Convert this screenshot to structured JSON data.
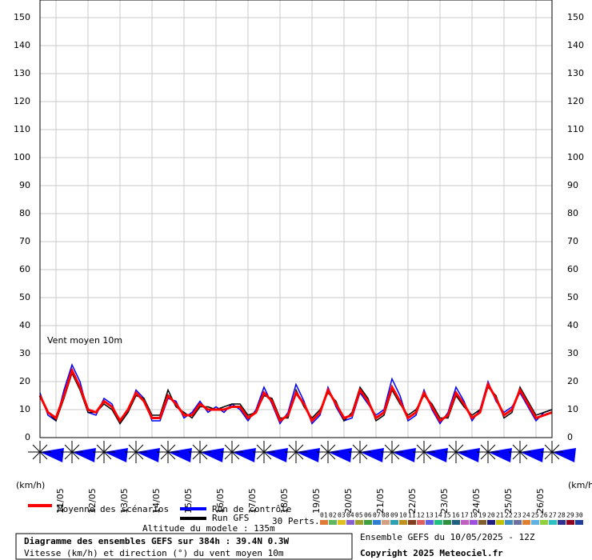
{
  "chart_data": {
    "type": "line",
    "annotation": "Vent moyen 10m",
    "y_unit_left": "(km/h)",
    "y_unit_right": "(km/h)",
    "x": [
      0,
      6,
      12,
      18,
      24,
      30,
      36,
      42,
      48,
      54,
      60,
      66,
      72,
      78,
      84,
      90,
      96,
      102,
      108,
      114,
      120,
      126,
      132,
      138,
      144,
      150,
      156,
      162,
      168,
      174,
      180,
      186,
      192,
      198,
      204,
      210,
      216,
      222,
      228,
      234,
      240,
      246,
      252,
      258,
      264,
      270,
      276,
      282,
      288,
      294,
      300,
      306,
      312,
      318,
      324,
      330,
      336,
      342,
      348,
      354,
      360,
      366,
      372,
      378,
      384
    ],
    "xlim": [
      0,
      384
    ],
    "xticks": [
      {
        "value": 12,
        "label": "11/05"
      },
      {
        "value": 36,
        "label": "12/05"
      },
      {
        "value": 60,
        "label": "13/05"
      },
      {
        "value": 84,
        "label": "14/05"
      },
      {
        "value": 108,
        "label": "15/05"
      },
      {
        "value": 132,
        "label": "16/05"
      },
      {
        "value": 156,
        "label": "17/05"
      },
      {
        "value": 180,
        "label": "18/05"
      },
      {
        "value": 204,
        "label": "19/05"
      },
      {
        "value": 228,
        "label": "20/05"
      },
      {
        "value": 252,
        "label": "21/05"
      },
      {
        "value": 276,
        "label": "22/05"
      },
      {
        "value": 300,
        "label": "23/05"
      },
      {
        "value": 324,
        "label": "24/05"
      },
      {
        "value": 348,
        "label": "25/05"
      },
      {
        "value": 372,
        "label": "26/05"
      }
    ],
    "ylim": [
      0,
      150
    ],
    "yticks": [
      0,
      10,
      20,
      30,
      40,
      50,
      60,
      70,
      80,
      90,
      100,
      110,
      120,
      130,
      140,
      150
    ],
    "grid": true,
    "series": [
      {
        "name": "Moyenne des scénarios",
        "color": "#ff0000",
        "values": [
          15,
          9,
          7,
          15,
          24,
          18,
          10,
          9,
          13,
          11,
          6,
          10,
          16,
          13,
          7,
          7,
          15,
          12,
          8,
          8,
          12,
          10,
          10,
          10,
          11,
          11,
          7,
          9,
          16,
          13,
          6,
          8,
          16,
          12,
          6,
          9,
          17,
          12,
          7,
          8,
          17,
          13,
          7,
          9,
          18,
          13,
          7,
          9,
          16,
          11,
          6,
          8,
          16,
          12,
          7,
          9,
          19,
          14,
          8,
          10,
          17,
          12,
          7,
          8,
          9
        ]
      },
      {
        "name": "Run de contrôle",
        "color": "#0000ff",
        "values": [
          16,
          8,
          6,
          17,
          26,
          20,
          9,
          8,
          14,
          12,
          5,
          9,
          17,
          14,
          6,
          6,
          14,
          13,
          7,
          9,
          13,
          9,
          11,
          9,
          12,
          10,
          6,
          10,
          18,
          12,
          5,
          9,
          19,
          13,
          5,
          8,
          18,
          11,
          6,
          7,
          16,
          12,
          8,
          10,
          21,
          15,
          6,
          8,
          17,
          10,
          5,
          9,
          18,
          13,
          6,
          10,
          20,
          13,
          9,
          11,
          16,
          11,
          6,
          9,
          10
        ]
      },
      {
        "name": "Run GFS",
        "color": "#000000",
        "values": [
          15,
          9,
          6,
          14,
          23,
          17,
          9,
          9,
          12,
          10,
          5,
          9,
          15,
          14,
          8,
          8,
          17,
          11,
          9,
          7,
          11,
          11,
          10,
          11,
          12,
          12,
          8,
          9,
          15,
          14,
          7,
          7,
          17,
          11,
          7,
          10,
          16,
          13,
          6,
          9,
          18,
          14,
          6,
          8,
          17,
          12,
          8,
          10,
          15,
          12,
          7,
          7,
          15,
          11,
          8,
          10,
          18,
          15,
          7,
          9,
          18,
          13,
          8,
          9,
          10
        ]
      }
    ],
    "perturbations": {
      "title": "30 Perts.",
      "labels": [
        "01",
        "02",
        "03",
        "04",
        "05",
        "06",
        "07",
        "08",
        "09",
        "10",
        "11",
        "12",
        "13",
        "14",
        "15",
        "16",
        "17",
        "18",
        "19",
        "20",
        "21",
        "22",
        "23",
        "24",
        "25",
        "26",
        "27",
        "28",
        "29",
        "30"
      ],
      "colors": [
        "#e07b39",
        "#5fb85f",
        "#e0c020",
        "#8a5fd0",
        "#a0a030",
        "#3f9f3f",
        "#2f7fd0",
        "#d0a080",
        "#30a0b0",
        "#c09020",
        "#804020",
        "#e06060",
        "#6060e0",
        "#20c080",
        "#309040",
        "#206080",
        "#c060c0",
        "#a050e0",
        "#806030",
        "#202080",
        "#c0c000",
        "#4090c0",
        "#7070a0",
        "#e08030",
        "#60b0e0",
        "#90d040",
        "#30c0c0",
        "#303090",
        "#900020",
        "#2040a0"
      ]
    },
    "footer": {
      "altitude": "Altitude du modele : 135m",
      "title": "Diagramme des ensembles GEFS sur 384h : 39.4N 0.3W",
      "subtitle": "Vitesse (km/h) et direction (°) du vent moyen 10m",
      "run": "Ensemble GEFS du 10/05/2025 - 12Z",
      "copyright": "Copyright 2025 Meteociel.fr"
    }
  }
}
